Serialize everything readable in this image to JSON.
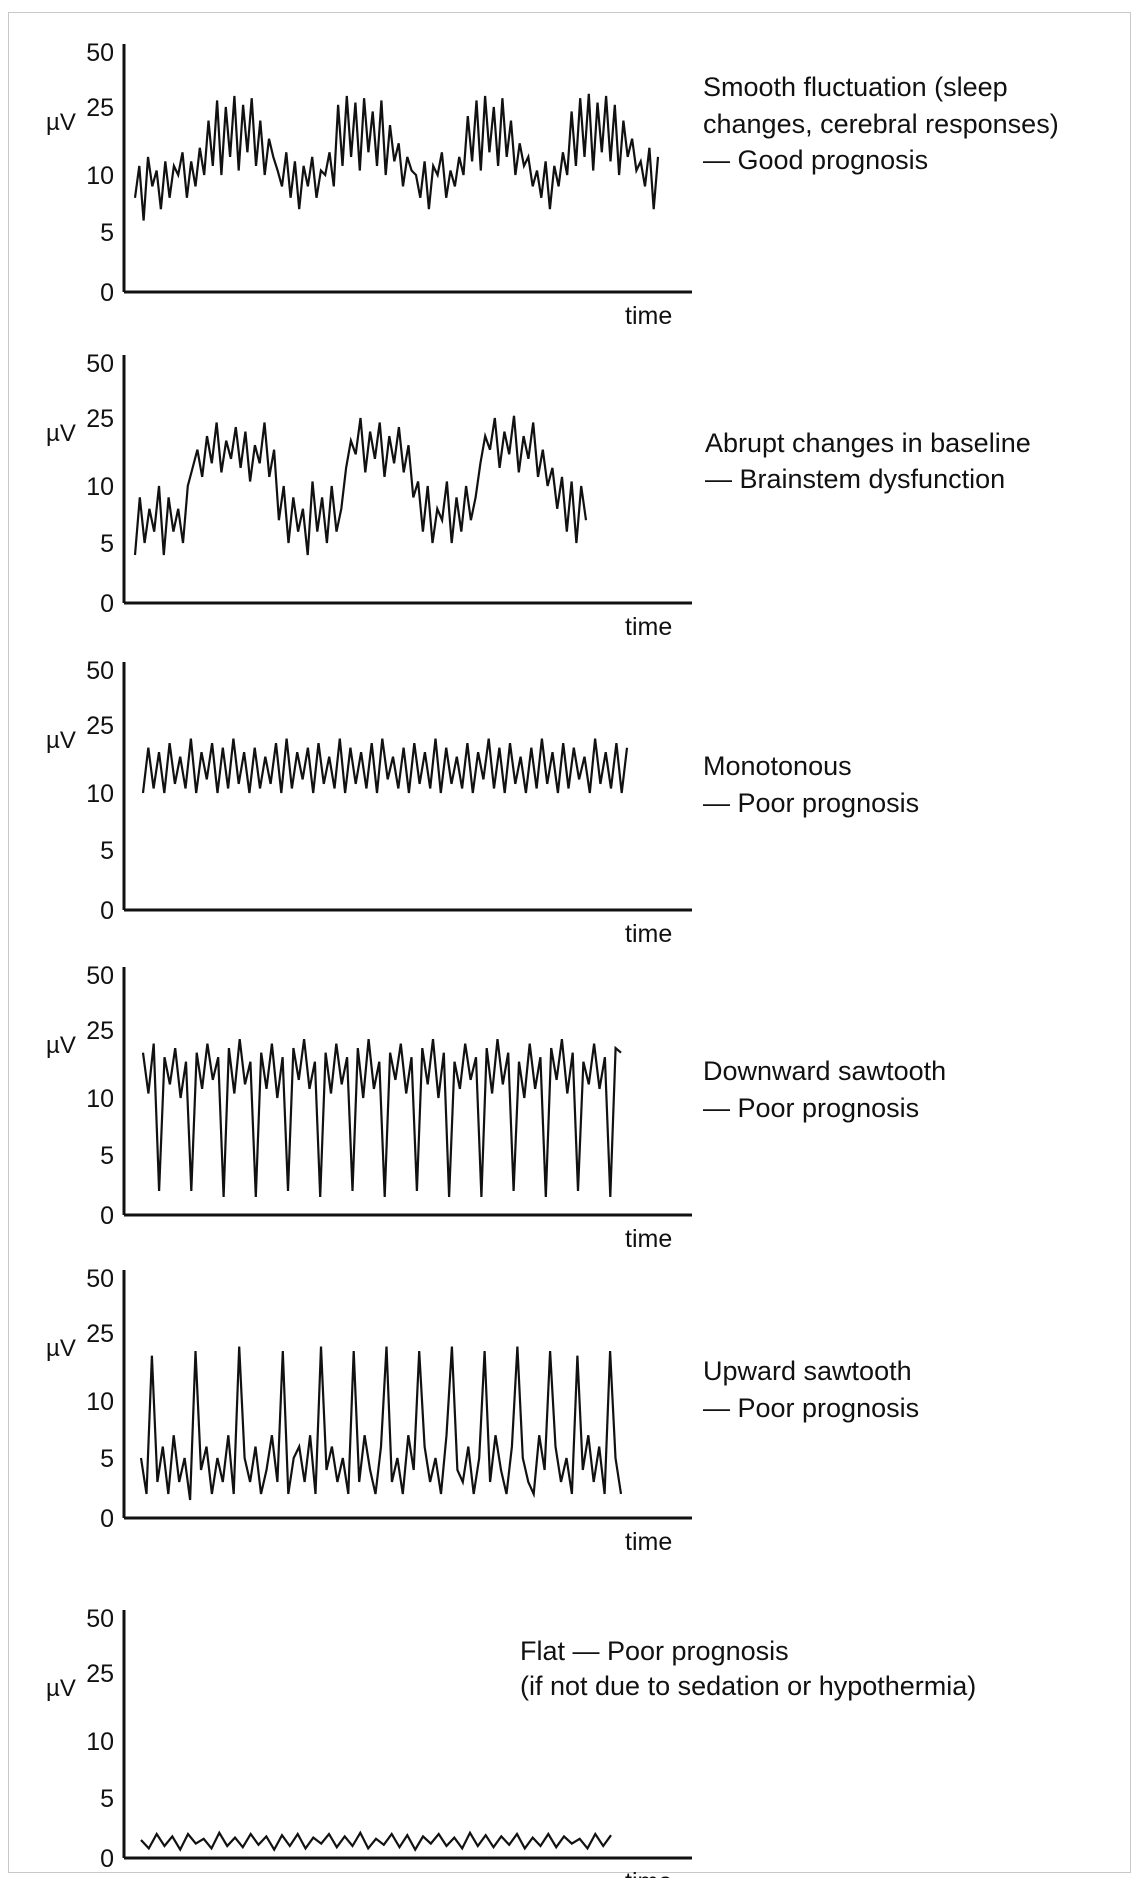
{
  "chart_data": [
    {
      "type": "line",
      "title": "",
      "ylabel": "µV",
      "xlabel": "time",
      "y_ticks": [
        "50",
        "25",
        "10",
        "5",
        "0"
      ],
      "annotation": [
        "Smooth fluctuation (sleep",
        "changes, cerebral responses)",
        "— Good prognosis"
      ],
      "pattern": "smooth",
      "series": [
        {
          "values": [
            8,
            12,
            6,
            14,
            9,
            11,
            7,
            13,
            8,
            12,
            10,
            15,
            8,
            13,
            9,
            16,
            10,
            22,
            12,
            28,
            10,
            25,
            14,
            30,
            11,
            26,
            15,
            29,
            12,
            22,
            10,
            18,
            14,
            11,
            9,
            15,
            8,
            13,
            7,
            12,
            9,
            14,
            8,
            11,
            10,
            15,
            9,
            26,
            12,
            30,
            14,
            27,
            11,
            29,
            15,
            24,
            12,
            28,
            10,
            21,
            13,
            17,
            9,
            14,
            11,
            10,
            8,
            13,
            7,
            12,
            10,
            15,
            8,
            11,
            9,
            14,
            10,
            23,
            13,
            28,
            11,
            30,
            15,
            25,
            12,
            29,
            14,
            22,
            10,
            17,
            12,
            14,
            9,
            11,
            8,
            13,
            7,
            12,
            9,
            15,
            10,
            24,
            12,
            29,
            14,
            31,
            11,
            27,
            15,
            30,
            13,
            26,
            10,
            22,
            14,
            18,
            11,
            13,
            9,
            16,
            7,
            14
          ]
        }
      ]
    },
    {
      "type": "line",
      "title": "",
      "ylabel": "µV",
      "xlabel": "time",
      "y_ticks": [
        "50",
        "25",
        "10",
        "5",
        "0"
      ],
      "annotation": [
        "Abrupt changes in baseline",
        "— Brainstem dysfunction"
      ],
      "pattern": "abrupt",
      "series": [
        {
          "values": [
            4,
            9,
            5,
            8,
            6,
            10,
            4,
            9,
            6,
            8,
            5,
            10,
            14,
            18,
            12,
            21,
            15,
            24,
            13,
            20,
            16,
            23,
            14,
            22,
            11,
            19,
            15,
            24,
            12,
            18,
            7,
            10,
            5,
            9,
            6,
            8,
            4,
            11,
            6,
            9,
            5,
            10,
            6,
            8,
            14,
            20,
            17,
            25,
            13,
            22,
            16,
            24,
            12,
            21,
            15,
            23,
            13,
            19,
            9,
            11,
            6,
            10,
            5,
            8,
            7,
            11,
            5,
            9,
            6,
            10,
            7,
            9,
            15,
            21,
            18,
            25,
            14,
            22,
            17,
            26,
            13,
            21,
            16,
            24,
            12,
            18,
            10,
            14,
            8,
            12,
            6,
            11,
            5,
            10,
            7
          ]
        }
      ]
    },
    {
      "type": "line",
      "title": "",
      "ylabel": "µV",
      "xlabel": "time",
      "y_ticks": [
        "50",
        "25",
        "10",
        "5",
        "0"
      ],
      "annotation": [
        "Monotonous",
        "— Poor prognosis"
      ],
      "pattern": "monotonous",
      "series": [
        {
          "values": [
            10,
            20,
            11,
            19,
            10,
            21,
            12,
            18,
            11,
            22,
            10,
            19,
            13,
            21,
            10,
            20,
            11,
            22,
            12,
            19,
            10,
            20,
            11,
            18,
            12,
            21,
            10,
            22,
            11,
            19,
            13,
            20,
            10,
            21,
            12,
            18,
            11,
            22,
            10,
            20,
            12,
            19,
            11,
            21,
            10,
            22,
            13,
            18,
            11,
            20,
            10,
            21,
            12,
            19,
            11,
            22,
            10,
            20,
            12,
            18,
            11,
            21,
            10,
            19,
            13,
            22,
            11,
            20,
            10,
            21,
            12,
            18,
            10,
            20,
            11,
            22,
            12,
            19,
            10,
            21,
            11,
            20,
            13,
            18,
            10,
            22,
            12,
            19,
            11,
            21,
            10,
            20
          ]
        }
      ]
    },
    {
      "type": "line",
      "title": "",
      "ylabel": "µV",
      "xlabel": "time",
      "y_ticks": [
        "50",
        "25",
        "10",
        "5",
        "0"
      ],
      "annotation": [
        "Downward sawtooth",
        "— Poor prognosis"
      ],
      "pattern": "downward",
      "series": [
        {
          "values": [
            20,
            11,
            22,
            2,
            19,
            13,
            21,
            10,
            18,
            2,
            20,
            12,
            22,
            14,
            19,
            1.5,
            21,
            11,
            23,
            13,
            18,
            1.5,
            20,
            12,
            22,
            10,
            19,
            2,
            21,
            14,
            23,
            12,
            18,
            1.5,
            20,
            11,
            22,
            13,
            19,
            2,
            21,
            10,
            23,
            12,
            18,
            1.5,
            20,
            14,
            22,
            11,
            19,
            2,
            21,
            13,
            23,
            10,
            20,
            1.5,
            18,
            12,
            22,
            14,
            19,
            1.5,
            21,
            11,
            23,
            13,
            20,
            2,
            18,
            10,
            22,
            12,
            19,
            1.5,
            21,
            14,
            23,
            11,
            20,
            2,
            18,
            13,
            22,
            12,
            19,
            1.5,
            21,
            20
          ]
        }
      ]
    },
    {
      "type": "line",
      "title": "",
      "ylabel": "µV",
      "xlabel": "time",
      "y_ticks": [
        "50",
        "25",
        "10",
        "5",
        "0"
      ],
      "annotation": [
        "Upward sawtooth",
        "— Poor prognosis"
      ],
      "pattern": "upward",
      "series": [
        {
          "values": [
            5,
            2,
            20,
            3,
            6,
            2,
            7,
            3,
            5,
            1.5,
            21,
            4,
            6,
            2,
            5,
            3,
            7,
            2,
            22,
            5,
            3,
            6,
            2,
            4,
            7,
            3,
            21,
            2,
            5,
            6,
            3,
            7,
            2,
            22,
            4,
            6,
            3,
            5,
            2,
            21,
            3,
            7,
            4,
            2,
            6,
            22,
            3,
            5,
            2,
            7,
            4,
            21,
            6,
            3,
            5,
            2,
            7,
            22,
            4,
            3,
            6,
            2,
            5,
            21,
            3,
            7,
            4,
            2,
            6,
            22,
            5,
            3,
            2,
            7,
            4,
            21,
            6,
            3,
            5,
            2,
            20,
            4,
            7,
            3,
            6,
            2,
            21,
            5,
            2
          ]
        }
      ]
    },
    {
      "type": "line",
      "title": "",
      "ylabel": "µV",
      "xlabel": "time",
      "y_ticks": [
        "50",
        "25",
        "10",
        "5",
        "0"
      ],
      "annotation": [
        "Flat — Poor prognosis",
        "(if not due to sedation or hypothermia)"
      ],
      "pattern": "flat",
      "series": [
        {
          "values": [
            1.5,
            0.8,
            2,
            1,
            1.8,
            0.7,
            2,
            1.2,
            1.6,
            0.8,
            2.1,
            1,
            1.7,
            0.9,
            2,
            1.1,
            1.8,
            0.7,
            1.9,
            1,
            2,
            0.8,
            1.7,
            1.2,
            2,
            0.9,
            1.8,
            1,
            2.1,
            0.8,
            1.6,
            1.1,
            2,
            0.9,
            1.9,
            0.7,
            1.8,
            1.2,
            2,
            1,
            1.7,
            0.8,
            2.1,
            1,
            1.9,
            0.9,
            1.8,
            1.1,
            2,
            0.8,
            1.7,
            1,
            2,
            0.9,
            1.8,
            1.2,
            1.6,
            0.8,
            2,
            1,
            1.9
          ]
        }
      ]
    }
  ]
}
